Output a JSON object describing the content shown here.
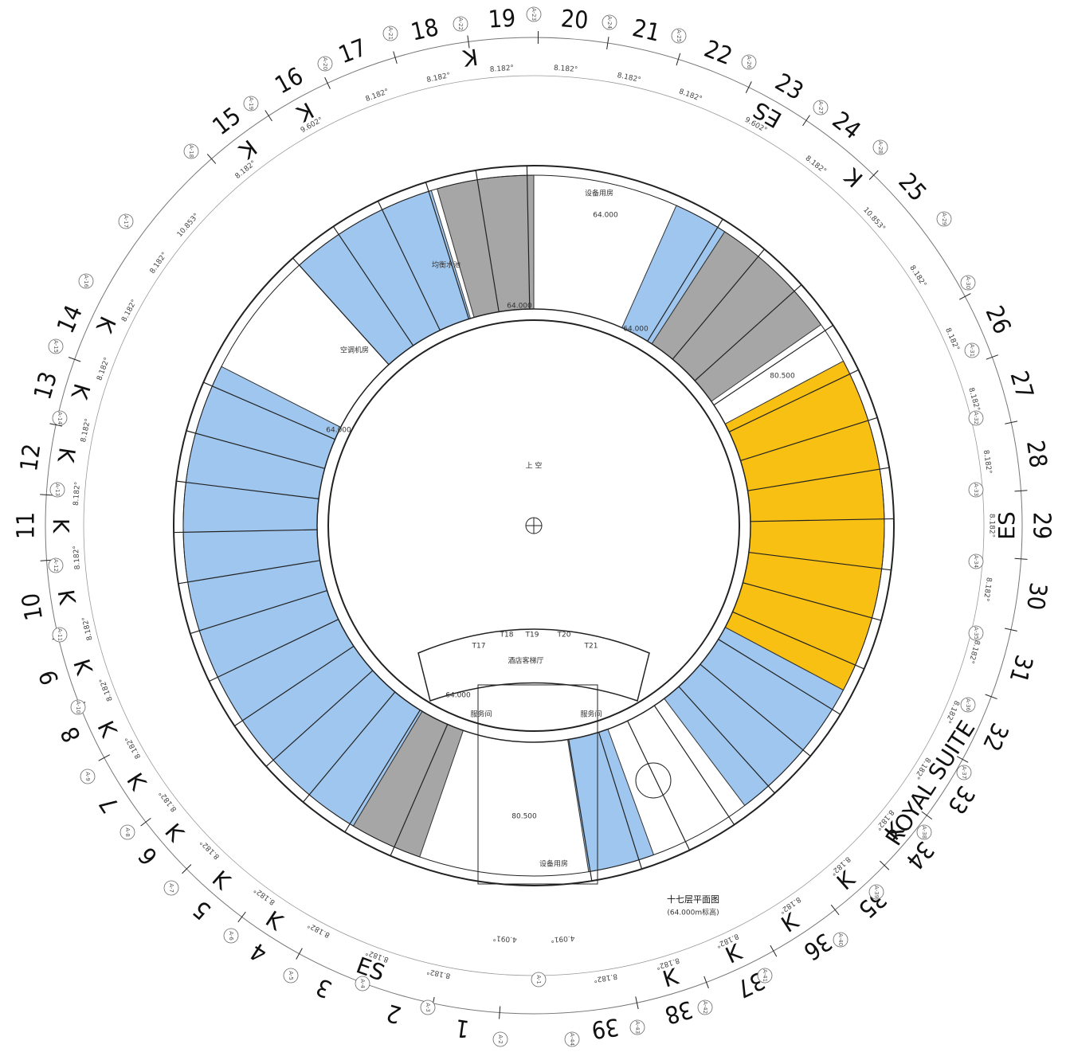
{
  "plan_title": "十七层平面图",
  "plan_subtitle": "(64.000m标高)",
  "atrium_label": "上 空",
  "units": [
    "1",
    "2",
    "3",
    "4",
    "5",
    "6",
    "7",
    "8",
    "9",
    "10",
    "11",
    "12",
    "13",
    "14",
    "15",
    "16",
    "17",
    "18",
    "19",
    "20",
    "21",
    "22",
    "23",
    "24",
    "25",
    "26",
    "27",
    "28",
    "29",
    "30",
    "31",
    "32",
    "33",
    "34",
    "35",
    "36",
    "37",
    "38",
    "39"
  ],
  "unit_types": [
    "ES",
    "K",
    "K",
    "K",
    "K",
    "K",
    "K",
    "K",
    "K",
    "K",
    "K",
    "K",
    "K",
    "K",
    "K",
    "ES",
    "K",
    "ES",
    "ROYAL SUITE",
    "K",
    "K",
    "K",
    "K",
    "K"
  ],
  "axes": [
    "A-1",
    "A-2",
    "A-3",
    "A-4",
    "A-5",
    "A-6",
    "A-7",
    "A-8",
    "A-9",
    "A-10",
    "A-11",
    "A-12",
    "A-13",
    "A-14",
    "A-15",
    "A-16",
    "A-17",
    "A-18",
    "A-19",
    "A-20",
    "A-21",
    "A-22",
    "A-23",
    "A-24",
    "A-25",
    "A-26",
    "A-27",
    "A-28",
    "A-29",
    "A-30",
    "A-31",
    "A-32",
    "A-33",
    "A-34",
    "A-35",
    "A-36",
    "A-37",
    "A-38",
    "A-39",
    "A-40",
    "A-41",
    "A-42",
    "A-43",
    "A-44"
  ],
  "dimensions": [
    "4.091°",
    "4.091°",
    "8.182°",
    "8.182°",
    "8.182°",
    "8.182°",
    "8.182°",
    "8.182°",
    "8.182°",
    "8.182°",
    "8.182°",
    "8.182°",
    "8.182°",
    "8.182°",
    "8.182°",
    "8.182°",
    "8.182°",
    "10.853°",
    "8.182°",
    "9.602°",
    "8.182°",
    "8.182°",
    "8.182°",
    "8.182°",
    "8.182°",
    "8.182°",
    "9.602°",
    "8.182°",
    "10.853°",
    "8.182°",
    "8.182°",
    "8.182°",
    "8.182°",
    "8.182°",
    "8.182°",
    "8.182°",
    "8.182°",
    "8.182°",
    "8.182°",
    "8.182°",
    "8.182°",
    "8.182°",
    "8.182°",
    "8.182°"
  ],
  "notes": [
    "64.000",
    "64.000",
    "64.000",
    "64.000",
    "64.000",
    "设备用房",
    "设备用房",
    "服务间",
    "服务间",
    "T17",
    "T18",
    "T19",
    "T20",
    "T21",
    "酒店客梯厅",
    "空调机房",
    "均衡水池",
    "80.500",
    "80.500"
  ]
}
